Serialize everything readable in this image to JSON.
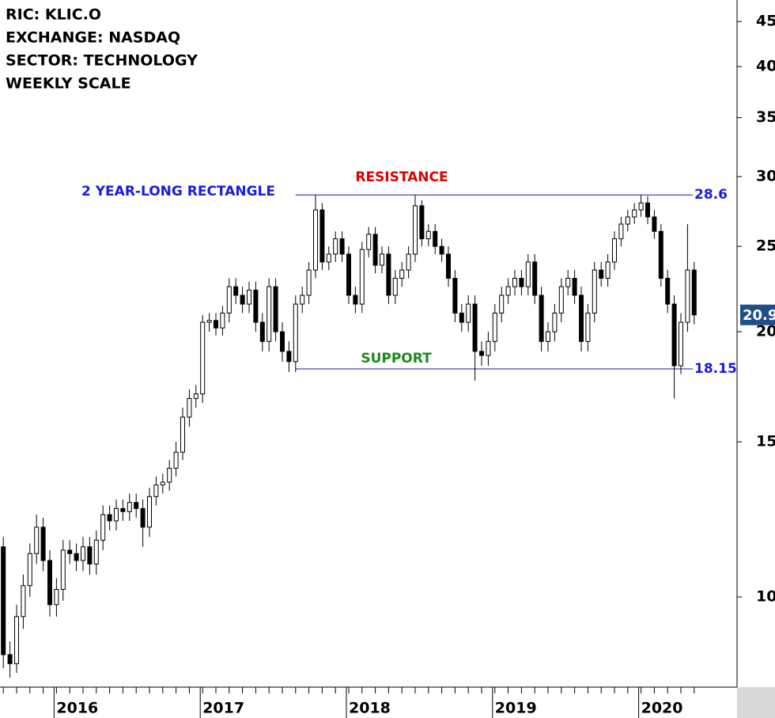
{
  "chart_data": {
    "type": "candlestick",
    "header_lines": [
      "RIC: KLIC.O",
      "EXCHANGE: NASDAQ",
      "SECTOR: TECHNOLOGY",
      "WEEKLY SCALE"
    ],
    "log_scale": true,
    "ylim": [
      7.9,
      47.6
    ],
    "yticks": [
      10,
      15,
      20,
      25,
      30,
      35,
      40,
      45
    ],
    "categories": [
      null,
      null,
      null,
      null,
      null,
      null,
      null,
      null,
      "2016",
      null,
      null,
      null,
      null,
      null,
      null,
      null,
      null,
      null,
      null,
      null,
      null,
      null,
      null,
      null,
      null,
      null,
      null,
      null,
      null,
      null,
      "2017",
      null,
      null,
      null,
      null,
      null,
      null,
      null,
      null,
      null,
      null,
      null,
      null,
      null,
      null,
      null,
      null,
      null,
      null,
      null,
      null,
      null,
      "2018",
      null,
      null,
      null,
      null,
      null,
      null,
      null,
      null,
      null,
      null,
      null,
      null,
      null,
      null,
      null,
      null,
      null,
      null,
      null,
      null,
      null,
      "2019",
      null,
      null,
      null,
      null,
      null,
      null,
      null,
      null,
      null,
      null,
      null,
      null,
      null,
      null,
      null,
      null,
      null,
      null,
      null,
      null,
      null,
      "2020",
      null,
      null,
      null,
      null,
      null,
      null,
      null,
      null
    ],
    "open": [
      11.4,
      8.6,
      8.4,
      9.5,
      10.3,
      11.2,
      12.0,
      11.0,
      9.8,
      10.2,
      11.3,
      11.2,
      11.0,
      11.4,
      10.9,
      11.6,
      12.4,
      12.2,
      12.6,
      12.5,
      12.8,
      12.6,
      12.0,
      13.0,
      13.4,
      13.5,
      14.0,
      14.6,
      16.0,
      16.8,
      17.0,
      20.5,
      20.6,
      20.2,
      21.0,
      22.5,
      22.0,
      21.5,
      22.3,
      20.5,
      19.5,
      22.5,
      20.0,
      19.0,
      18.5,
      21.5,
      22.0,
      23.5,
      27.5,
      24.0,
      24.5,
      25.5,
      24.5,
      22.0,
      21.5,
      24.8,
      25.8,
      23.8,
      24.5,
      22.0,
      23.0,
      23.5,
      24.5,
      27.8,
      25.5,
      26.0,
      25.0,
      24.5,
      23.0,
      21.0,
      20.5,
      21.5,
      19.0,
      18.8,
      19.5,
      21.0,
      22.0,
      22.5,
      23.0,
      22.5,
      24.0,
      22.0,
      19.5,
      20.0,
      21.0,
      22.5,
      23.0,
      22.0,
      19.5,
      21.0,
      23.5,
      23.0,
      24.0,
      25.5,
      26.5,
      27.0,
      27.5,
      28.0,
      27.0,
      26.0,
      23.0,
      21.5,
      18.3,
      20.5,
      23.5
    ],
    "high": [
      11.7,
      8.9,
      9.8,
      10.6,
      11.5,
      12.4,
      12.3,
      11.3,
      10.5,
      11.6,
      11.6,
      11.5,
      11.7,
      11.7,
      11.9,
      12.7,
      12.7,
      12.9,
      12.9,
      13.1,
      13.1,
      12.9,
      13.3,
      13.7,
      13.8,
      14.3,
      15.0,
      16.4,
      17.2,
      17.4,
      20.9,
      21.0,
      21.0,
      21.4,
      23.0,
      23.0,
      22.5,
      22.8,
      22.8,
      21.0,
      23.0,
      23.0,
      20.5,
      19.5,
      22.0,
      22.5,
      24.0,
      28.6,
      28.0,
      25.0,
      26.0,
      26.0,
      25.0,
      22.5,
      25.3,
      26.3,
      26.3,
      25.0,
      25.0,
      23.5,
      24.0,
      25.0,
      28.6,
      28.2,
      26.5,
      26.5,
      25.5,
      25.0,
      23.5,
      21.5,
      22.0,
      22.0,
      19.5,
      20.0,
      21.5,
      22.5,
      23.0,
      23.5,
      23.5,
      24.5,
      24.5,
      22.5,
      20.5,
      21.5,
      23.0,
      23.5,
      23.5,
      22.5,
      21.5,
      24.0,
      24.0,
      24.5,
      26.0,
      27.0,
      27.5,
      28.0,
      28.6,
      28.5,
      27.5,
      26.5,
      23.5,
      22.0,
      21.0,
      26.5,
      24.0
    ],
    "low": [
      8.3,
      8.1,
      8.2,
      9.2,
      10.0,
      10.9,
      10.7,
      9.5,
      9.5,
      9.9,
      10.9,
      10.7,
      10.7,
      10.6,
      10.6,
      11.3,
      11.9,
      11.9,
      12.2,
      12.2,
      12.3,
      11.4,
      11.7,
      12.7,
      13.1,
      13.2,
      13.7,
      14.3,
      15.6,
      16.4,
      16.6,
      20.0,
      19.8,
      19.8,
      20.5,
      21.5,
      21.0,
      21.0,
      20.0,
      19.0,
      19.0,
      19.5,
      18.5,
      18.0,
      18.0,
      21.0,
      21.5,
      23.0,
      23.5,
      23.5,
      24.0,
      24.0,
      21.5,
      21.0,
      21.0,
      24.3,
      23.3,
      23.3,
      21.5,
      21.5,
      22.5,
      23.0,
      24.0,
      25.0,
      25.0,
      24.5,
      24.0,
      22.5,
      20.5,
      20.0,
      20.0,
      17.6,
      18.3,
      18.3,
      19.0,
      20.5,
      21.5,
      22.0,
      22.0,
      22.0,
      21.5,
      19.0,
      19.0,
      19.5,
      20.5,
      22.0,
      21.5,
      19.0,
      19.0,
      20.5,
      22.5,
      22.5,
      23.5,
      25.0,
      26.0,
      26.5,
      27.0,
      26.5,
      25.5,
      22.5,
      21.0,
      16.8,
      17.9,
      20.0,
      20.4
    ],
    "close": [
      8.6,
      8.4,
      9.5,
      10.3,
      11.2,
      12.0,
      11.0,
      9.8,
      10.2,
      11.3,
      11.2,
      11.0,
      11.4,
      10.9,
      11.6,
      12.4,
      12.2,
      12.6,
      12.5,
      12.8,
      12.6,
      12.0,
      13.0,
      13.4,
      13.5,
      14.0,
      14.6,
      16.0,
      16.8,
      17.0,
      20.5,
      20.6,
      20.2,
      21.0,
      22.5,
      22.0,
      21.5,
      22.3,
      20.5,
      19.5,
      22.5,
      20.0,
      19.0,
      18.5,
      21.5,
      22.0,
      23.5,
      27.5,
      24.0,
      24.5,
      25.5,
      24.5,
      22.0,
      21.5,
      24.8,
      25.8,
      23.8,
      24.5,
      22.0,
      23.0,
      23.5,
      24.5,
      27.8,
      25.5,
      26.0,
      25.0,
      24.5,
      23.0,
      21.0,
      20.5,
      21.5,
      19.0,
      18.8,
      19.5,
      21.0,
      22.0,
      22.5,
      23.0,
      22.5,
      24.0,
      22.0,
      19.5,
      20.0,
      21.0,
      22.5,
      23.0,
      22.0,
      19.5,
      21.0,
      23.5,
      23.0,
      24.0,
      25.5,
      26.5,
      27.0,
      27.5,
      28.0,
      27.0,
      26.0,
      23.0,
      21.5,
      18.3,
      20.5,
      23.5,
      20.9
    ],
    "levels": [
      {
        "value": 28.6,
        "name": "RESISTANCE",
        "color": "#e00000",
        "line_color": "#1a1aa8"
      },
      {
        "value": 18.15,
        "name": "SUPPORT",
        "color": "#1a8a1a",
        "line_color": "#1a1aa8"
      }
    ],
    "pattern_label": "2 YEAR-LONG RECTANGLE",
    "label_color": "#1a1ae0",
    "last_price_color": "#1f4e8a"
  }
}
